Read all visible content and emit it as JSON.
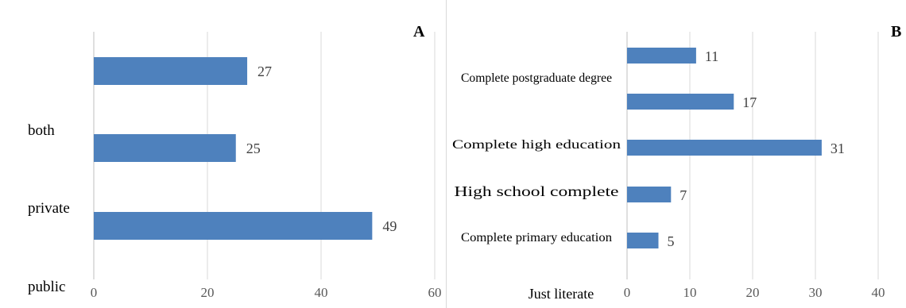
{
  "chart_data": [
    {
      "type": "bar",
      "orientation": "horizontal",
      "panel_label": "A",
      "categories": [
        "both",
        "private",
        "public"
      ],
      "values": [
        27,
        25,
        49
      ],
      "data_labels": [
        "27",
        "25",
        "49"
      ],
      "xlim": [
        0,
        60
      ],
      "xticks": [
        "0",
        "20",
        "40",
        "60"
      ],
      "grid": "vertical",
      "bar_color": "#4e81bd",
      "title": "",
      "xlabel": "",
      "ylabel": ""
    },
    {
      "type": "bar",
      "orientation": "horizontal",
      "panel_label": "B",
      "categories": [
        "Complete postgraduate degree",
        "Complete high education",
        "High school complete",
        "Complete primary education",
        "Just literate"
      ],
      "values": [
        11,
        17,
        31,
        7,
        5
      ],
      "data_labels": [
        "11",
        "17",
        "31",
        "7",
        "5"
      ],
      "xlim": [
        0,
        40
      ],
      "xticks": [
        "0",
        "10",
        "20",
        "30",
        "40"
      ],
      "grid": "vertical",
      "bar_color": "#4e81bd",
      "title": "",
      "xlabel": "",
      "ylabel": ""
    }
  ]
}
